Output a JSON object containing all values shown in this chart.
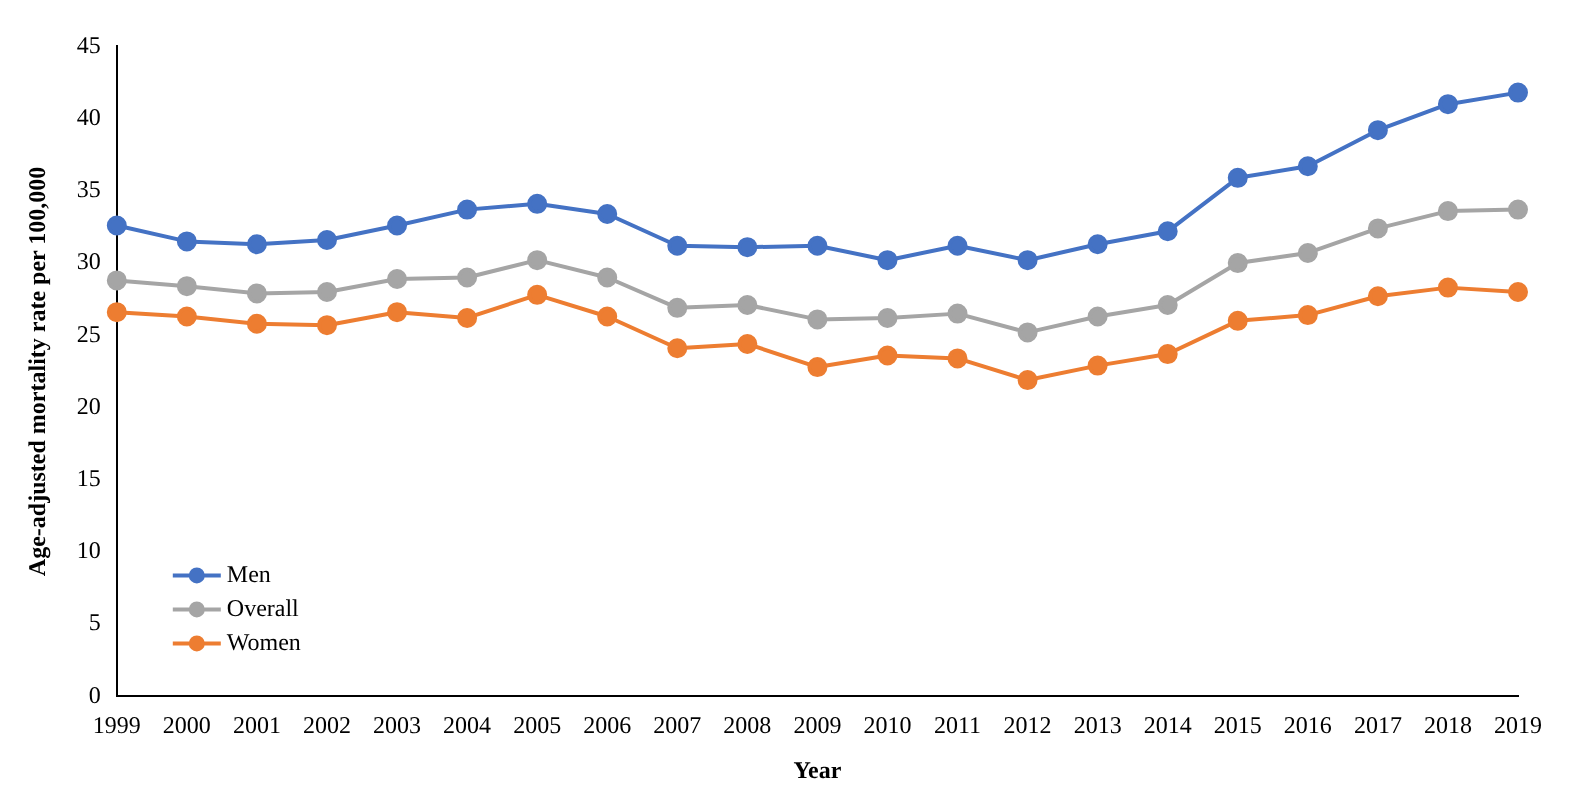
{
  "chart_data": {
    "type": "line",
    "xlabel": "Year",
    "ylabel": "Age-adjusted mortality rate per 100,000",
    "categories": [
      "1999",
      "2000",
      "2001",
      "2002",
      "2003",
      "2004",
      "2005",
      "2006",
      "2007",
      "2008",
      "2009",
      "2010",
      "2011",
      "2012",
      "2013",
      "2014",
      "2015",
      "2016",
      "2017",
      "2018",
      "2019"
    ],
    "series": [
      {
        "name": "Men",
        "color": "#4472c4",
        "values": [
          32.6,
          31.5,
          31.3,
          31.6,
          32.6,
          33.7,
          34.1,
          33.4,
          31.2,
          31.1,
          31.2,
          30.2,
          31.2,
          30.2,
          31.3,
          32.2,
          35.9,
          36.7,
          39.2,
          41.0,
          41.8
        ]
      },
      {
        "name": "Overall",
        "color": "#a5a5a5",
        "values": [
          28.8,
          28.4,
          27.9,
          28.0,
          28.9,
          29.0,
          30.2,
          29.0,
          26.9,
          27.1,
          26.1,
          26.2,
          26.5,
          25.2,
          26.3,
          27.1,
          30.0,
          30.7,
          32.4,
          33.6,
          33.7
        ]
      },
      {
        "name": "Women",
        "color": "#ed7d31",
        "values": [
          26.6,
          26.3,
          25.8,
          25.7,
          26.6,
          26.2,
          27.8,
          26.3,
          24.1,
          24.4,
          22.8,
          23.6,
          23.4,
          21.9,
          22.9,
          23.7,
          26.0,
          26.4,
          27.7,
          28.3,
          28.0
        ]
      }
    ],
    "ylim": [
      0,
      45
    ],
    "yticks": [
      0,
      5,
      10,
      15,
      20,
      25,
      30,
      35,
      40,
      45
    ],
    "grid": false,
    "legend": "bottom left",
    "marker": "circle",
    "line_style": "solid"
  }
}
